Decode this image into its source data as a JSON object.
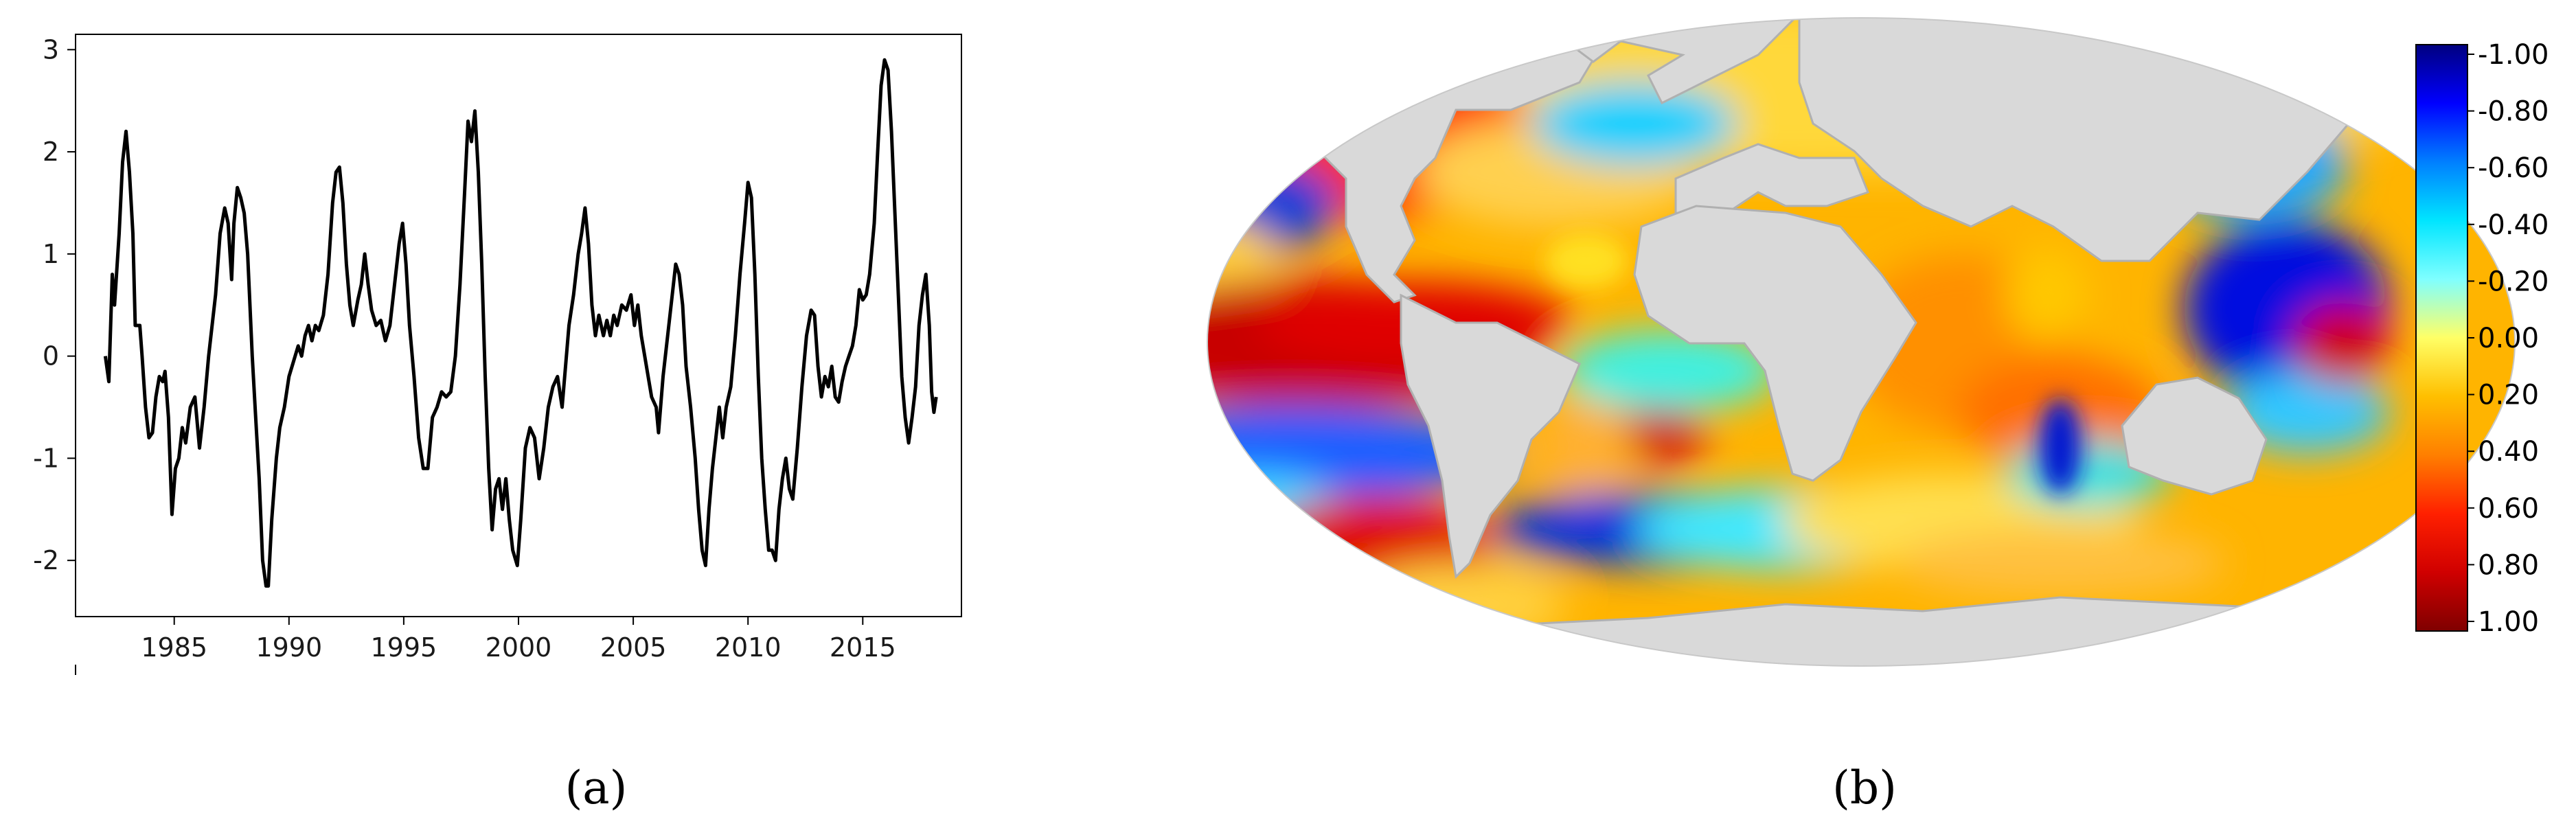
{
  "captions": {
    "a": "(a)",
    "b": "(b)"
  },
  "chart_data": [
    {
      "type": "line",
      "title": "",
      "xlabel": "",
      "ylabel": "",
      "xlim": [
        1980.7,
        2019.3
      ],
      "ylim": [
        -2.55,
        3.15
      ],
      "grid": false,
      "x_ticks": [
        1985,
        1990,
        1995,
        2000,
        2005,
        2010,
        2015
      ],
      "x_tick_labels": [
        "1985",
        "1990",
        "1995",
        "2000",
        "2005",
        "2010",
        "2015"
      ],
      "y_ticks": [
        -2,
        -1,
        0,
        1,
        2,
        3
      ],
      "y_tick_labels": [
        "-2",
        "-1",
        "0",
        "1",
        "2",
        "3"
      ],
      "line_color": "#000000",
      "series": [
        {
          "points": [
            [
              1982.0,
              0.0
            ],
            [
              1982.15,
              -0.25
            ],
            [
              1982.3,
              0.8
            ],
            [
              1982.4,
              0.5
            ],
            [
              1982.6,
              1.2
            ],
            [
              1982.75,
              1.9
            ],
            [
              1982.9,
              2.2
            ],
            [
              1983.05,
              1.8
            ],
            [
              1983.2,
              1.2
            ],
            [
              1983.3,
              0.3
            ],
            [
              1983.5,
              0.3
            ],
            [
              1983.6,
              0.0
            ],
            [
              1983.75,
              -0.5
            ],
            [
              1983.9,
              -0.8
            ],
            [
              1984.05,
              -0.75
            ],
            [
              1984.2,
              -0.4
            ],
            [
              1984.35,
              -0.2
            ],
            [
              1984.5,
              -0.25
            ],
            [
              1984.6,
              -0.15
            ],
            [
              1984.75,
              -0.6
            ],
            [
              1984.9,
              -1.55
            ],
            [
              1985.05,
              -1.1
            ],
            [
              1985.2,
              -1.0
            ],
            [
              1985.35,
              -0.7
            ],
            [
              1985.5,
              -0.85
            ],
            [
              1985.7,
              -0.5
            ],
            [
              1985.9,
              -0.4
            ],
            [
              1986.1,
              -0.9
            ],
            [
              1986.3,
              -0.5
            ],
            [
              1986.5,
              0.0
            ],
            [
              1986.8,
              0.6
            ],
            [
              1987.0,
              1.2
            ],
            [
              1987.2,
              1.45
            ],
            [
              1987.35,
              1.3
            ],
            [
              1987.5,
              0.75
            ],
            [
              1987.6,
              1.3
            ],
            [
              1987.75,
              1.65
            ],
            [
              1987.9,
              1.55
            ],
            [
              1988.05,
              1.4
            ],
            [
              1988.2,
              1.0
            ],
            [
              1988.4,
              0.0
            ],
            [
              1988.55,
              -0.6
            ],
            [
              1988.7,
              -1.2
            ],
            [
              1988.85,
              -2.0
            ],
            [
              1989.0,
              -2.25
            ],
            [
              1989.1,
              -2.25
            ],
            [
              1989.25,
              -1.6
            ],
            [
              1989.45,
              -1.0
            ],
            [
              1989.6,
              -0.7
            ],
            [
              1989.8,
              -0.5
            ],
            [
              1990.0,
              -0.2
            ],
            [
              1990.2,
              -0.05
            ],
            [
              1990.4,
              0.1
            ],
            [
              1990.55,
              0.0
            ],
            [
              1990.7,
              0.2
            ],
            [
              1990.85,
              0.3
            ],
            [
              1991.0,
              0.15
            ],
            [
              1991.15,
              0.3
            ],
            [
              1991.3,
              0.25
            ],
            [
              1991.5,
              0.4
            ],
            [
              1991.7,
              0.8
            ],
            [
              1991.9,
              1.5
            ],
            [
              1992.05,
              1.8
            ],
            [
              1992.2,
              1.85
            ],
            [
              1992.35,
              1.5
            ],
            [
              1992.5,
              0.9
            ],
            [
              1992.65,
              0.5
            ],
            [
              1992.8,
              0.3
            ],
            [
              1993.0,
              0.55
            ],
            [
              1993.15,
              0.7
            ],
            [
              1993.3,
              1.0
            ],
            [
              1993.45,
              0.7
            ],
            [
              1993.6,
              0.45
            ],
            [
              1993.8,
              0.3
            ],
            [
              1994.0,
              0.35
            ],
            [
              1994.2,
              0.15
            ],
            [
              1994.4,
              0.3
            ],
            [
              1994.6,
              0.7
            ],
            [
              1994.8,
              1.1
            ],
            [
              1994.95,
              1.3
            ],
            [
              1995.1,
              0.9
            ],
            [
              1995.25,
              0.3
            ],
            [
              1995.45,
              -0.2
            ],
            [
              1995.65,
              -0.8
            ],
            [
              1995.85,
              -1.1
            ],
            [
              1996.05,
              -1.1
            ],
            [
              1996.25,
              -0.6
            ],
            [
              1996.45,
              -0.5
            ],
            [
              1996.65,
              -0.35
            ],
            [
              1996.85,
              -0.4
            ],
            [
              1997.05,
              -0.35
            ],
            [
              1997.25,
              0.0
            ],
            [
              1997.45,
              0.7
            ],
            [
              1997.65,
              1.6
            ],
            [
              1997.8,
              2.3
            ],
            [
              1997.95,
              2.1
            ],
            [
              1998.1,
              2.4
            ],
            [
              1998.25,
              1.8
            ],
            [
              1998.4,
              0.9
            ],
            [
              1998.55,
              -0.2
            ],
            [
              1998.7,
              -1.1
            ],
            [
              1998.85,
              -1.7
            ],
            [
              1999.0,
              -1.3
            ],
            [
              1999.15,
              -1.2
            ],
            [
              1999.3,
              -1.5
            ],
            [
              1999.45,
              -1.2
            ],
            [
              1999.6,
              -1.6
            ],
            [
              1999.75,
              -1.9
            ],
            [
              1999.95,
              -2.05
            ],
            [
              2000.1,
              -1.6
            ],
            [
              2000.3,
              -0.9
            ],
            [
              2000.5,
              -0.7
            ],
            [
              2000.7,
              -0.8
            ],
            [
              2000.9,
              -1.2
            ],
            [
              2001.1,
              -0.9
            ],
            [
              2001.3,
              -0.5
            ],
            [
              2001.5,
              -0.3
            ],
            [
              2001.7,
              -0.2
            ],
            [
              2001.9,
              -0.5
            ],
            [
              2002.05,
              -0.1
            ],
            [
              2002.2,
              0.3
            ],
            [
              2002.4,
              0.6
            ],
            [
              2002.6,
              1.0
            ],
            [
              2002.75,
              1.2
            ],
            [
              2002.9,
              1.45
            ],
            [
              2003.05,
              1.1
            ],
            [
              2003.2,
              0.5
            ],
            [
              2003.35,
              0.2
            ],
            [
              2003.5,
              0.4
            ],
            [
              2003.7,
              0.2
            ],
            [
              2003.85,
              0.35
            ],
            [
              2004.0,
              0.2
            ],
            [
              2004.15,
              0.4
            ],
            [
              2004.3,
              0.3
            ],
            [
              2004.5,
              0.5
            ],
            [
              2004.7,
              0.45
            ],
            [
              2004.9,
              0.6
            ],
            [
              2005.05,
              0.3
            ],
            [
              2005.2,
              0.5
            ],
            [
              2005.35,
              0.2
            ],
            [
              2005.5,
              0.0
            ],
            [
              2005.65,
              -0.2
            ],
            [
              2005.8,
              -0.4
            ],
            [
              2006.0,
              -0.5
            ],
            [
              2006.1,
              -0.75
            ],
            [
              2006.3,
              -0.2
            ],
            [
              2006.5,
              0.2
            ],
            [
              2006.7,
              0.6
            ],
            [
              2006.85,
              0.9
            ],
            [
              2007.0,
              0.8
            ],
            [
              2007.15,
              0.5
            ],
            [
              2007.3,
              -0.1
            ],
            [
              2007.5,
              -0.5
            ],
            [
              2007.7,
              -1.0
            ],
            [
              2007.85,
              -1.5
            ],
            [
              2008.0,
              -1.9
            ],
            [
              2008.15,
              -2.05
            ],
            [
              2008.3,
              -1.5
            ],
            [
              2008.45,
              -1.1
            ],
            [
              2008.6,
              -0.8
            ],
            [
              2008.75,
              -0.5
            ],
            [
              2008.9,
              -0.8
            ],
            [
              2009.05,
              -0.5
            ],
            [
              2009.25,
              -0.3
            ],
            [
              2009.45,
              0.2
            ],
            [
              2009.65,
              0.8
            ],
            [
              2009.85,
              1.3
            ],
            [
              2010.0,
              1.7
            ],
            [
              2010.15,
              1.55
            ],
            [
              2010.3,
              0.8
            ],
            [
              2010.45,
              -0.2
            ],
            [
              2010.6,
              -1.0
            ],
            [
              2010.75,
              -1.5
            ],
            [
              2010.9,
              -1.9
            ],
            [
              2011.05,
              -1.9
            ],
            [
              2011.2,
              -2.0
            ],
            [
              2011.35,
              -1.5
            ],
            [
              2011.5,
              -1.2
            ],
            [
              2011.65,
              -1.0
            ],
            [
              2011.8,
              -1.3
            ],
            [
              2011.95,
              -1.4
            ],
            [
              2012.15,
              -0.9
            ],
            [
              2012.35,
              -0.3
            ],
            [
              2012.55,
              0.2
            ],
            [
              2012.75,
              0.45
            ],
            [
              2012.9,
              0.4
            ],
            [
              2013.05,
              -0.1
            ],
            [
              2013.2,
              -0.4
            ],
            [
              2013.35,
              -0.2
            ],
            [
              2013.5,
              -0.3
            ],
            [
              2013.65,
              -0.1
            ],
            [
              2013.8,
              -0.4
            ],
            [
              2013.95,
              -0.45
            ],
            [
              2014.1,
              -0.25
            ],
            [
              2014.25,
              -0.1
            ],
            [
              2014.4,
              0.0
            ],
            [
              2014.55,
              0.1
            ],
            [
              2014.7,
              0.3
            ],
            [
              2014.85,
              0.65
            ],
            [
              2015.0,
              0.55
            ],
            [
              2015.15,
              0.6
            ],
            [
              2015.3,
              0.8
            ],
            [
              2015.5,
              1.3
            ],
            [
              2015.65,
              2.0
            ],
            [
              2015.8,
              2.65
            ],
            [
              2015.95,
              2.9
            ],
            [
              2016.1,
              2.8
            ],
            [
              2016.25,
              2.2
            ],
            [
              2016.4,
              1.4
            ],
            [
              2016.55,
              0.6
            ],
            [
              2016.7,
              -0.2
            ],
            [
              2016.85,
              -0.6
            ],
            [
              2017.0,
              -0.85
            ],
            [
              2017.15,
              -0.6
            ],
            [
              2017.3,
              -0.3
            ],
            [
              2017.45,
              0.3
            ],
            [
              2017.6,
              0.6
            ],
            [
              2017.75,
              0.8
            ],
            [
              2017.9,
              0.3
            ],
            [
              2018.0,
              -0.35
            ],
            [
              2018.1,
              -0.55
            ],
            [
              2018.2,
              -0.4
            ]
          ]
        }
      ]
    },
    {
      "type": "heatmap",
      "title": "",
      "projection": "mollweide",
      "land_color": "#d9d9d9",
      "colorbar": {
        "orientation": "vertical",
        "placement": "right",
        "tick_labels": [
          "-1.00",
          "-0.80",
          "-0.60",
          "-0.40",
          "-0.20",
          "0.00",
          "0.20",
          "0.40",
          "0.60",
          "0.80",
          "1.00"
        ],
        "colors_top_to_bottom": [
          "#00007f",
          "#0000ff",
          "#007fff",
          "#00e5ff",
          "#7fffff",
          "#ffff66",
          "#ffbf00",
          "#ff7f00",
          "#ff2000",
          "#d00000",
          "#7f0000"
        ]
      }
    }
  ]
}
